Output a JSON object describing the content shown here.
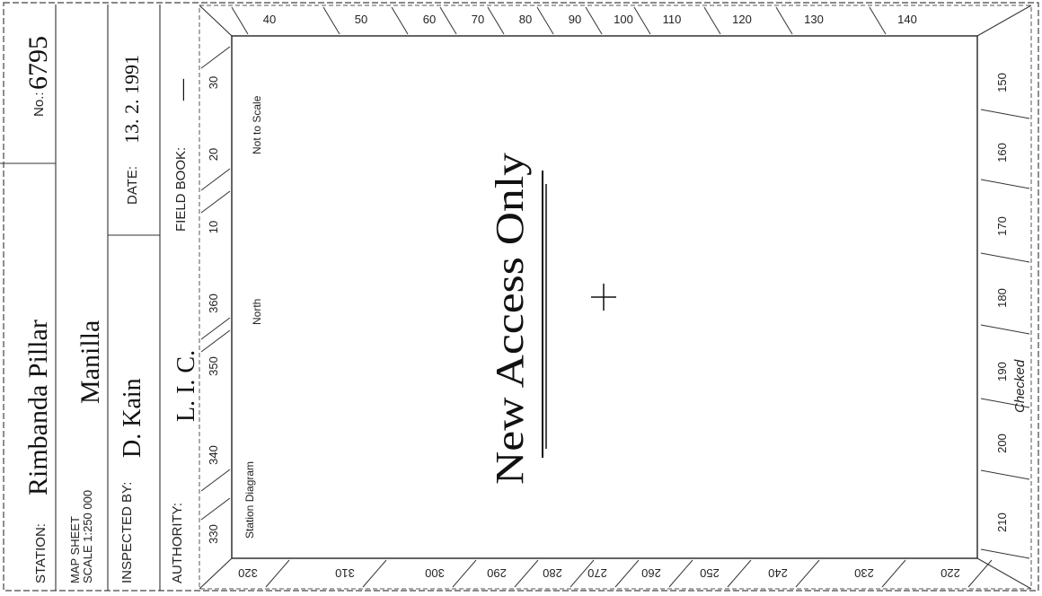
{
  "header": {
    "number_label": "No.:",
    "number_value": "6795",
    "station_label": "STATION:",
    "station_value": "Rimbanda Pillar",
    "map_sheet_label_1": "MAP SHEET",
    "map_sheet_label_2": "SCALE 1:250 000",
    "map_sheet_value": "Manilla",
    "date_label": "DATE:",
    "date_value": "13. 2. 1991",
    "field_book_label": "FIELD BOOK:",
    "field_book_value": "—",
    "inspected_by_label": "INSPECTED BY:",
    "inspected_by_value": "D. Kain",
    "authority_label": "AUTHORITY:",
    "authority_value": "L. I. C."
  },
  "diagram": {
    "title": "Station Diagram",
    "north_label": "North",
    "scale_note": "Not to Scale",
    "handwritten_note": "New Access Only",
    "checked_label": "Checked"
  },
  "bearings": {
    "left": [
      "330",
      "340",
      "350",
      "360",
      "10",
      "20",
      "30"
    ],
    "top": [
      "40",
      "50",
      "60",
      "70",
      "80",
      "90",
      "100",
      "110",
      "120",
      "130",
      "140"
    ],
    "right": [
      "150",
      "160",
      "170",
      "180",
      "190",
      "200",
      "210"
    ],
    "bottom": [
      "320",
      "310",
      "300",
      "290",
      "280",
      "270",
      "260",
      "250",
      "240",
      "230",
      "220"
    ]
  }
}
